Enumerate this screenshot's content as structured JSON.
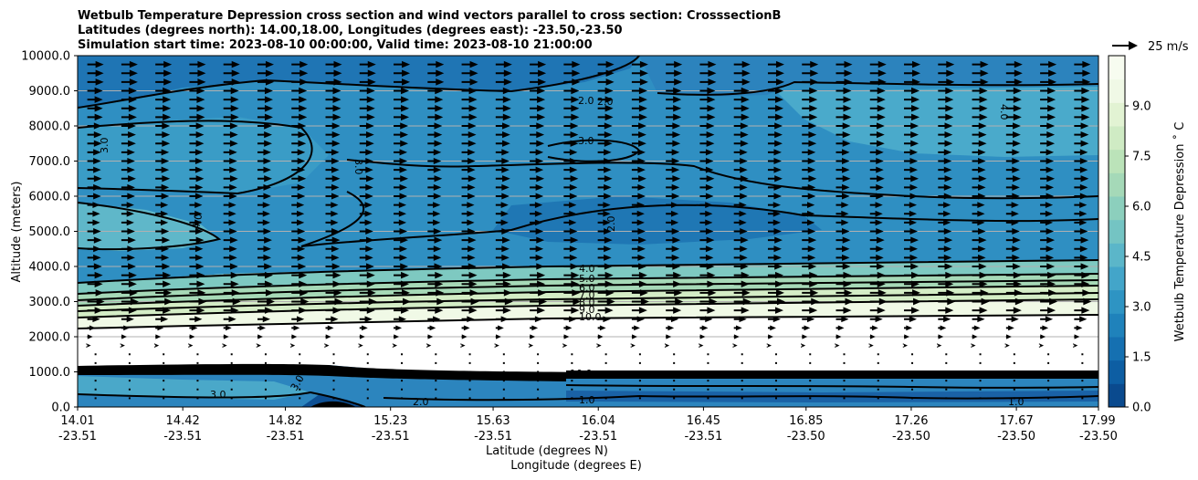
{
  "chart_data": {
    "type": "contour",
    "title_lines": [
      "Wetbulb Temperature Depression cross section and wind vectors parallel to cross section: CrosssectionB",
      "Latitudes (degrees north): 14.00,18.00, Longitudes (degrees east): -23.50,-23.50",
      "Simulation start time: 2023-08-10 00:00:00, Valid time: 2023-08-10 21:00:00"
    ],
    "ylabel": "Altitude (meters)",
    "xlabel_lat": "Latitude (degrees N)",
    "xlabel_lon": "Longitude (degrees E)",
    "ylim": [
      0,
      10000
    ],
    "y_ticks": [
      "0.0",
      "1000.0",
      "2000.0",
      "3000.0",
      "4000.0",
      "5000.0",
      "6000.0",
      "7000.0",
      "8000.0",
      "9000.0",
      "10000.0"
    ],
    "x_range": [
      14.01,
      17.99
    ],
    "x_ticks": [
      {
        "lat": "14.01",
        "lon": "-23.51",
        "v": 14.01
      },
      {
        "lat": "14.42",
        "lon": "-23.51",
        "v": 14.42
      },
      {
        "lat": "14.82",
        "lon": "-23.51",
        "v": 14.82
      },
      {
        "lat": "15.23",
        "lon": "-23.51",
        "v": 15.23
      },
      {
        "lat": "15.63",
        "lon": "-23.51",
        "v": 15.63
      },
      {
        "lat": "16.04",
        "lon": "-23.51",
        "v": 16.04
      },
      {
        "lat": "16.45",
        "lon": "-23.51",
        "v": 16.45
      },
      {
        "lat": "16.85",
        "lon": "-23.50",
        "v": 16.85
      },
      {
        "lat": "17.26",
        "lon": "-23.50",
        "v": 17.26
      },
      {
        "lat": "17.67",
        "lon": "-23.50",
        "v": 17.67
      },
      {
        "lat": "17.99",
        "lon": "-23.50",
        "v": 17.99
      }
    ],
    "colorbar": {
      "label": "Wetbulb Temperature Depression ˚ C",
      "min": 0,
      "max": 10.5,
      "ticks": [
        "0.0",
        "1.5",
        "3.0",
        "4.5",
        "6.0",
        "7.5",
        "9.0"
      ],
      "tick_values": [
        0,
        1.5,
        3.0,
        4.5,
        6.0,
        7.5,
        9.0
      ],
      "colors": [
        "#0a4a8e",
        "#0d5ea3",
        "#1570b1",
        "#1f82bb",
        "#2e94c3",
        "#43a5c9",
        "#5bb6c9",
        "#74c4c3",
        "#8ccfbd",
        "#a5d9b8",
        "#bbe3b9",
        "#cfebc4",
        "#e2f3d3",
        "#f0f9e6",
        "#f7fcf0"
      ]
    },
    "wind_legend": "25 m/s",
    "contour_labels_right": [
      "4.0",
      "5.0",
      "6.0",
      "7.0",
      "8.0",
      "9.0",
      "10.0"
    ],
    "contour_labels_misc": [
      "2.0",
      "2.0",
      "3.0",
      "3.0",
      "3.0",
      "4.0",
      "2.0",
      "4.0",
      "3.0",
      "3.0",
      "1.0",
      "2.0",
      "1.0",
      "10.0"
    ],
    "wind_rows_altitude": [
      250,
      500,
      750,
      1000,
      1250,
      1500,
      1750,
      2000,
      2250,
      2500,
      2750,
      3000,
      3250,
      3500,
      3750,
      4000,
      4250,
      4500,
      4750,
      5000,
      5250,
      5500,
      5750,
      6000,
      6250,
      6500,
      6750,
      7000,
      7250,
      7500,
      7750,
      8000,
      8250,
      8500,
      8750,
      9000,
      9250,
      9500,
      9750
    ],
    "wind_speed_by_row": [
      0,
      0,
      0,
      0,
      0,
      0,
      4,
      6,
      9,
      14,
      17,
      19,
      18,
      17,
      17,
      16,
      15,
      15,
      16,
      15,
      14,
      14,
      14,
      15,
      15,
      16,
      15,
      15,
      15,
      16,
      16,
      16,
      17,
      17,
      17,
      17,
      18,
      18,
      18
    ]
  }
}
